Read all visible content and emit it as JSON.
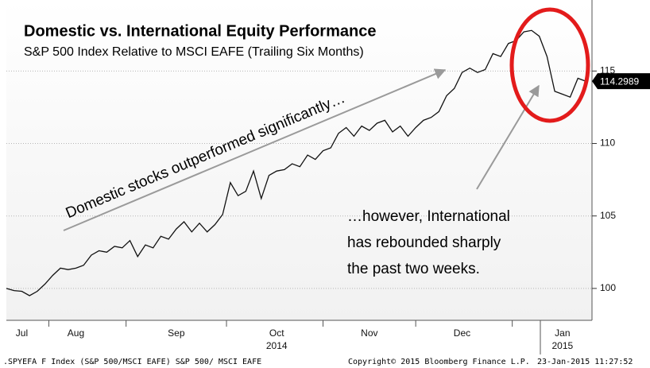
{
  "chart_data": {
    "type": "line",
    "title": "Domestic vs. International Equity Performance",
    "subtitle": "S&P 500 Index Relative to MSCI EAFE (Trailing Six Months)",
    "categories": [
      null,
      null,
      "Jul",
      null,
      null,
      null,
      null,
      null,
      null,
      "Aug",
      null,
      null,
      null,
      null,
      null,
      null,
      null,
      null,
      null,
      null,
      null,
      null,
      "Sep",
      null,
      null,
      null,
      null,
      null,
      null,
      null,
      null,
      null,
      null,
      null,
      null,
      "Oct",
      null,
      null,
      null,
      null,
      null,
      null,
      null,
      null,
      null,
      null,
      null,
      "Nov",
      null,
      null,
      null,
      null,
      null,
      null,
      null,
      null,
      null,
      null,
      null,
      "Dec",
      null,
      null,
      null,
      null,
      null,
      null,
      null,
      null,
      null,
      null,
      null,
      null,
      "Jan",
      null,
      null,
      null
    ],
    "years": [
      "2014",
      "2015"
    ],
    "series": [
      {
        "name": "S&P 500/ MSCI EAFE",
        "color": "#111111",
        "values": [
          100.0,
          99.85,
          99.8,
          99.5,
          99.8,
          100.3,
          100.9,
          101.4,
          101.3,
          101.4,
          101.6,
          102.3,
          102.6,
          102.5,
          102.9,
          102.8,
          103.3,
          102.2,
          103.0,
          102.8,
          103.6,
          103.4,
          104.1,
          104.6,
          103.9,
          104.5,
          103.9,
          104.4,
          105.1,
          107.3,
          106.4,
          106.7,
          108.1,
          106.2,
          107.8,
          108.1,
          108.2,
          108.6,
          108.4,
          109.2,
          108.9,
          109.5,
          109.7,
          110.7,
          111.1,
          110.5,
          111.2,
          110.9,
          111.4,
          111.6,
          110.8,
          111.2,
          110.5,
          111.1,
          111.6,
          111.8,
          112.2,
          113.3,
          113.8,
          114.9,
          115.2,
          114.9,
          115.1,
          116.2,
          116.0,
          116.9,
          117.1,
          117.7,
          117.8,
          117.4,
          116.0,
          113.6,
          113.4,
          113.2,
          114.5,
          114.2989
        ],
        "value_labels": [
          null,
          null,
          null,
          null,
          null,
          null,
          null,
          null,
          null,
          null,
          null,
          null,
          null,
          null,
          null,
          null,
          null,
          null,
          null,
          null,
          null,
          null,
          null,
          null,
          null,
          null,
          null,
          null,
          null,
          null,
          null,
          null,
          null,
          null,
          null,
          null,
          null,
          null,
          null,
          null,
          null,
          null,
          null,
          null,
          null,
          null,
          null,
          null,
          null,
          null,
          null,
          null,
          null,
          null,
          null,
          null,
          null,
          null,
          null,
          null,
          null,
          null,
          null,
          null,
          null,
          null,
          null,
          null,
          null,
          null,
          null,
          null,
          null,
          null,
          null,
          "114.2989"
        ]
      }
    ],
    "ylim": [
      97.8,
      119.9
    ],
    "yticks": [
      100,
      105,
      110,
      115
    ],
    "grid": true,
    "annotations": [
      "Domestic stocks outperformed significantly…",
      "…however, International",
      "has rebounded sharply",
      "the past two weeks."
    ],
    "footer": [
      ".SPYEFA F Index (S&P 500/MSCI EAFE) S&P 500/ MSCI EAFE",
      "Copyright© 2015 Bloomberg Finance L.P.",
      "23-Jan-2015 11:27:52"
    ]
  }
}
